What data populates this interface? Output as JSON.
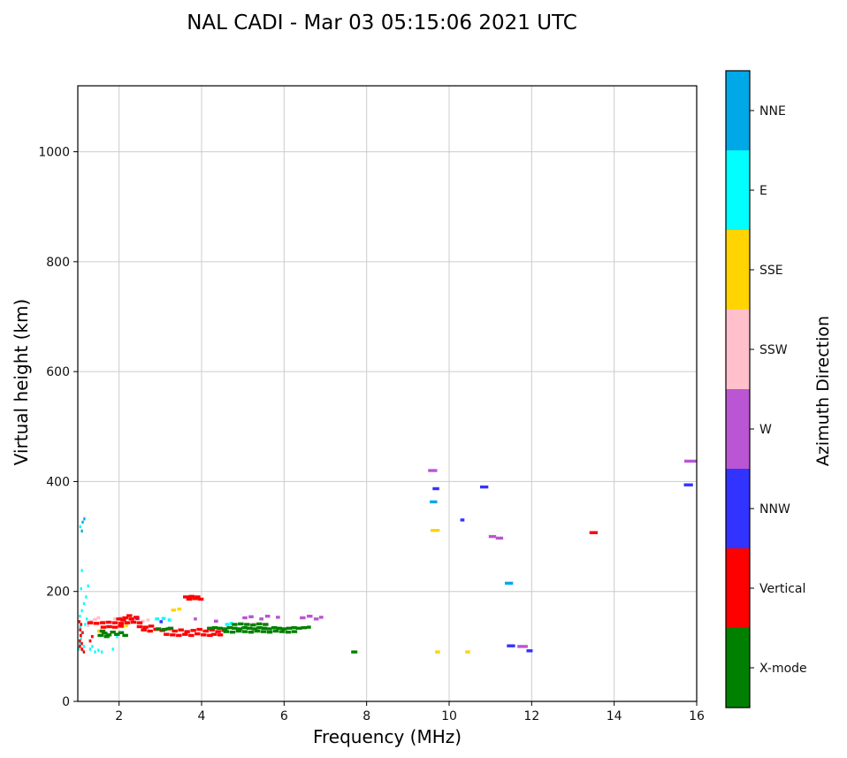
{
  "chart_data": {
    "type": "scatter",
    "title": "NAL CADI - Mar 03 05:15:06 2021 UTC",
    "xlabel": "Frequency (MHz)",
    "ylabel": "Virtual height (km)",
    "xlim": [
      1,
      16
    ],
    "ylim": [
      0,
      1120
    ],
    "xticks": [
      2,
      4,
      6,
      8,
      10,
      12,
      14,
      16
    ],
    "yticks": [
      0,
      200,
      400,
      600,
      800,
      1000
    ],
    "grid": true,
    "marker": "horizontal-dash",
    "colorbar": {
      "label": "Azimuth Direction",
      "position": "right"
    },
    "categories": [
      {
        "name": "NNE",
        "color": "#00a8e8"
      },
      {
        "name": "E",
        "color": "#00ffff"
      },
      {
        "name": "SSE",
        "color": "#ffd400"
      },
      {
        "name": "SSW",
        "color": "#ffc0cb"
      },
      {
        "name": "W",
        "color": "#ba55d3"
      },
      {
        "name": "NNW",
        "color": "#3333ff"
      },
      {
        "name": "Vertical",
        "color": "#ff0000"
      },
      {
        "name": "X-mode",
        "color": "#008000"
      }
    ],
    "points_format": [
      "freq_mhz",
      "virtual_height_km",
      "category_index",
      "dash_width_mhz_optional"
    ],
    "points": [
      [
        1.02,
        95,
        1,
        0.05
      ],
      [
        1.05,
        105,
        1,
        0.05
      ],
      [
        1.08,
        115,
        1,
        0.05
      ],
      [
        1.12,
        92,
        1,
        0.05
      ],
      [
        1.15,
        100,
        1,
        0.05
      ],
      [
        1.1,
        125,
        1,
        0.05
      ],
      [
        1.06,
        135,
        1,
        0.05
      ],
      [
        1.18,
        140,
        1,
        0.05
      ],
      [
        1.22,
        150,
        1,
        0.05
      ],
      [
        1.05,
        155,
        1,
        0.05
      ],
      [
        1.1,
        165,
        1,
        0.05
      ],
      [
        1.15,
        178,
        1,
        0.05
      ],
      [
        1.2,
        190,
        1,
        0.05
      ],
      [
        1.08,
        205,
        1,
        0.05
      ],
      [
        1.25,
        210,
        1,
        0.05
      ],
      [
        1.1,
        238,
        1,
        0.05
      ],
      [
        1.3,
        95,
        1,
        0.05
      ],
      [
        1.42,
        90,
        1,
        0.05
      ],
      [
        1.5,
        93,
        1,
        0.05
      ],
      [
        1.58,
        90,
        1,
        0.05
      ],
      [
        1.35,
        100,
        1,
        0.05
      ],
      [
        1.85,
        95,
        1,
        0.05
      ],
      [
        1.95,
        118,
        1,
        0.05
      ],
      [
        1.06,
        318,
        1,
        0.05
      ],
      [
        2.92,
        150,
        1,
        0.1
      ],
      [
        3.08,
        151,
        1,
        0.1
      ],
      [
        3.22,
        148,
        1,
        0.08
      ],
      [
        4.62,
        140,
        1,
        0.1
      ],
      [
        4.72,
        142,
        1,
        0.08
      ],
      [
        1.12,
        326,
        0,
        0.05
      ],
      [
        1.1,
        310,
        0,
        0.05
      ],
      [
        1.16,
        332,
        0,
        0.05
      ],
      [
        9.62,
        363,
        0,
        0.18
      ],
      [
        11.45,
        215,
        0,
        0.2
      ],
      [
        1.52,
        128,
        2,
        0.1
      ],
      [
        1.6,
        126,
        2,
        0.08
      ],
      [
        2.08,
        136,
        2,
        0.1
      ],
      [
        2.18,
        138,
        2,
        0.08
      ],
      [
        3.32,
        166,
        2,
        0.12
      ],
      [
        3.46,
        168,
        2,
        0.1
      ],
      [
        9.66,
        311,
        2,
        0.22
      ],
      [
        9.72,
        90,
        2,
        0.12
      ],
      [
        10.45,
        90,
        2,
        0.12
      ],
      [
        1.25,
        138,
        3,
        0.06
      ],
      [
        1.32,
        146,
        3,
        0.1
      ],
      [
        1.42,
        149,
        3,
        0.1
      ],
      [
        1.5,
        152,
        3,
        0.08
      ],
      [
        1.62,
        144,
        3,
        0.1
      ],
      [
        1.9,
        150,
        3,
        0.08
      ],
      [
        2.05,
        152,
        3,
        0.08
      ],
      [
        2.32,
        148,
        3,
        0.1
      ],
      [
        2.46,
        150,
        3,
        0.1
      ],
      [
        2.58,
        146,
        3,
        0.08
      ],
      [
        2.7,
        148,
        3,
        0.08
      ],
      [
        5.28,
        141,
        3,
        0.12
      ],
      [
        3.85,
        150,
        4,
        0.08
      ],
      [
        4.35,
        146,
        4,
        0.1
      ],
      [
        5.05,
        152,
        4,
        0.12
      ],
      [
        5.2,
        154,
        4,
        0.12
      ],
      [
        5.45,
        150,
        4,
        0.1
      ],
      [
        5.6,
        155,
        4,
        0.12
      ],
      [
        5.85,
        153,
        4,
        0.1
      ],
      [
        6.45,
        152,
        4,
        0.14
      ],
      [
        6.62,
        155,
        4,
        0.14
      ],
      [
        6.78,
        150,
        4,
        0.12
      ],
      [
        6.9,
        153,
        4,
        0.1
      ],
      [
        9.6,
        420,
        4,
        0.22
      ],
      [
        11.05,
        300,
        4,
        0.18
      ],
      [
        11.22,
        297,
        4,
        0.18
      ],
      [
        11.78,
        100,
        4,
        0.25
      ],
      [
        15.85,
        437,
        4,
        0.3
      ],
      [
        2.44,
        151,
        5,
        0.1
      ],
      [
        3.02,
        145,
        5,
        0.08
      ],
      [
        9.68,
        387,
        5,
        0.16
      ],
      [
        10.32,
        330,
        5,
        0.1
      ],
      [
        10.85,
        390,
        5,
        0.2
      ],
      [
        11.5,
        101,
        5,
        0.2
      ],
      [
        11.95,
        92,
        5,
        0.15
      ],
      [
        15.8,
        394,
        5,
        0.22
      ],
      [
        1.05,
        100,
        6,
        0.06
      ],
      [
        1.05,
        110,
        6,
        0.06
      ],
      [
        1.07,
        120,
        6,
        0.06
      ],
      [
        1.06,
        130,
        6,
        0.06
      ],
      [
        1.08,
        140,
        6,
        0.06
      ],
      [
        1.1,
        95,
        6,
        0.06
      ],
      [
        1.1,
        105,
        6,
        0.05
      ],
      [
        1.12,
        125,
        6,
        0.05
      ],
      [
        1.04,
        145,
        6,
        0.05
      ],
      [
        1.15,
        90,
        6,
        0.05
      ],
      [
        1.3,
        110,
        6,
        0.06
      ],
      [
        1.35,
        118,
        6,
        0.06
      ],
      [
        1.3,
        143,
        6
      ],
      [
        1.45,
        142,
        6
      ],
      [
        1.6,
        143,
        6
      ],
      [
        1.75,
        144,
        6
      ],
      [
        1.9,
        143,
        6
      ],
      [
        2.05,
        142,
        6
      ],
      [
        2.2,
        143,
        6
      ],
      [
        2.35,
        144,
        6
      ],
      [
        2.5,
        143,
        6
      ],
      [
        2.0,
        150,
        6
      ],
      [
        2.1,
        148,
        6
      ],
      [
        2.15,
        152,
        6
      ],
      [
        2.25,
        156,
        6
      ],
      [
        2.3,
        150,
        6
      ],
      [
        2.42,
        153,
        6
      ],
      [
        2.6,
        130,
        6
      ],
      [
        2.75,
        128,
        6
      ],
      [
        2.9,
        131,
        6
      ],
      [
        3.05,
        129,
        6
      ],
      [
        3.2,
        132,
        6
      ],
      [
        3.35,
        128,
        6
      ],
      [
        3.5,
        130,
        6
      ],
      [
        3.65,
        127,
        6
      ],
      [
        3.8,
        129,
        6
      ],
      [
        3.95,
        131,
        6
      ],
      [
        4.1,
        128,
        6
      ],
      [
        4.25,
        130,
        6
      ],
      [
        4.4,
        127,
        6
      ],
      [
        4.55,
        129,
        6
      ],
      [
        3.15,
        122,
        6
      ],
      [
        3.3,
        121,
        6
      ],
      [
        3.45,
        120,
        6
      ],
      [
        3.6,
        122,
        6
      ],
      [
        3.75,
        120,
        6
      ],
      [
        3.9,
        123,
        6
      ],
      [
        4.05,
        121,
        6
      ],
      [
        4.2,
        120,
        6
      ],
      [
        4.3,
        122,
        6
      ],
      [
        4.45,
        121,
        6
      ],
      [
        1.62,
        135,
        6
      ],
      [
        1.76,
        136,
        6
      ],
      [
        1.9,
        135,
        6
      ],
      [
        2.04,
        137,
        6
      ],
      [
        2.5,
        136,
        6
      ],
      [
        2.64,
        135,
        6
      ],
      [
        2.78,
        137,
        6
      ],
      [
        3.62,
        190,
        6
      ],
      [
        3.76,
        191,
        6
      ],
      [
        3.9,
        190,
        6
      ],
      [
        3.7,
        186,
        6
      ],
      [
        3.84,
        187,
        6
      ],
      [
        3.98,
        186,
        6
      ],
      [
        13.5,
        307,
        6,
        0.2
      ],
      [
        4.2,
        133,
        7
      ],
      [
        4.32,
        134,
        7
      ],
      [
        4.44,
        133,
        7
      ],
      [
        4.56,
        132,
        7
      ],
      [
        4.68,
        134,
        7
      ],
      [
        4.8,
        133,
        7
      ],
      [
        4.92,
        132,
        7
      ],
      [
        5.04,
        134,
        7
      ],
      [
        5.16,
        133,
        7
      ],
      [
        5.28,
        132,
        7
      ],
      [
        5.4,
        134,
        7
      ],
      [
        5.52,
        133,
        7
      ],
      [
        5.64,
        132,
        7
      ],
      [
        5.76,
        134,
        7
      ],
      [
        5.88,
        133,
        7
      ],
      [
        6.0,
        132,
        7
      ],
      [
        6.12,
        133,
        7
      ],
      [
        6.24,
        134,
        7
      ],
      [
        6.36,
        133,
        7
      ],
      [
        6.48,
        134,
        7
      ],
      [
        4.6,
        127,
        7
      ],
      [
        4.75,
        126,
        7
      ],
      [
        4.9,
        128,
        7
      ],
      [
        5.05,
        127,
        7
      ],
      [
        5.2,
        126,
        7
      ],
      [
        5.35,
        128,
        7
      ],
      [
        5.5,
        127,
        7
      ],
      [
        5.65,
        126,
        7
      ],
      [
        5.8,
        128,
        7
      ],
      [
        5.95,
        127,
        7
      ],
      [
        6.1,
        126,
        7
      ],
      [
        6.25,
        127,
        7
      ],
      [
        4.8,
        140,
        7
      ],
      [
        4.95,
        141,
        7
      ],
      [
        5.1,
        140,
        7
      ],
      [
        5.25,
        139,
        7
      ],
      [
        5.4,
        141,
        7
      ],
      [
        5.55,
        140,
        7
      ],
      [
        1.55,
        120,
        7
      ],
      [
        1.65,
        124,
        7
      ],
      [
        1.75,
        121,
        7
      ],
      [
        1.85,
        126,
        7
      ],
      [
        1.95,
        122,
        7
      ],
      [
        2.05,
        125,
        7
      ],
      [
        2.15,
        120,
        7
      ],
      [
        1.6,
        128,
        7
      ],
      [
        1.7,
        118,
        7
      ],
      [
        2.95,
        132,
        7
      ],
      [
        3.1,
        131,
        7
      ],
      [
        3.25,
        133,
        7
      ],
      [
        6.6,
        135,
        7,
        0.1
      ],
      [
        7.7,
        90,
        7,
        0.15
      ]
    ]
  }
}
